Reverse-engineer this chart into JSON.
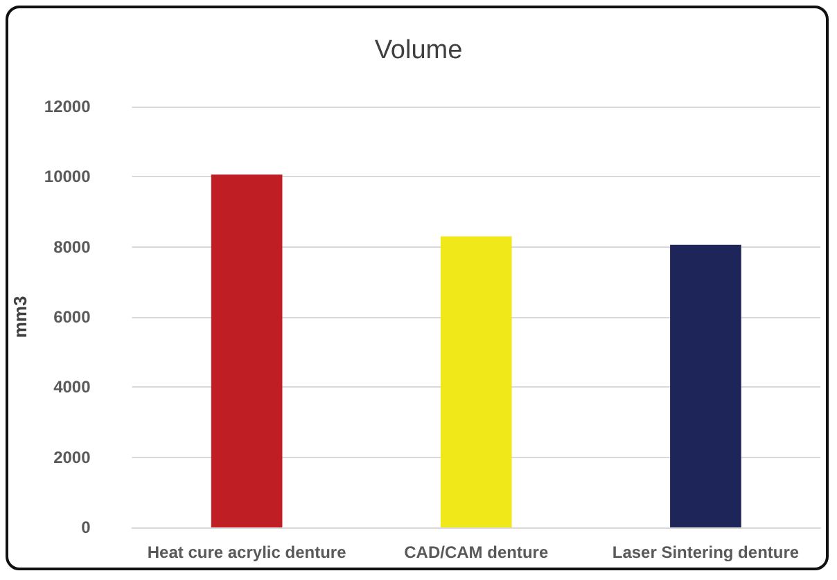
{
  "chart_data": {
    "type": "bar",
    "title": "Volume",
    "ylabel": "mm3",
    "categories": [
      "Heat cure acrylic denture",
      "CAD/CAM denture",
      "Laser Sintering denture"
    ],
    "values": [
      10060,
      8300,
      8060
    ],
    "colors": [
      "#be1e24",
      "#f0e818",
      "#1d2559"
    ],
    "ylim": [
      0,
      12000
    ],
    "yticks": [
      0,
      2000,
      4000,
      6000,
      8000,
      10000,
      12000
    ],
    "grid": "y"
  }
}
